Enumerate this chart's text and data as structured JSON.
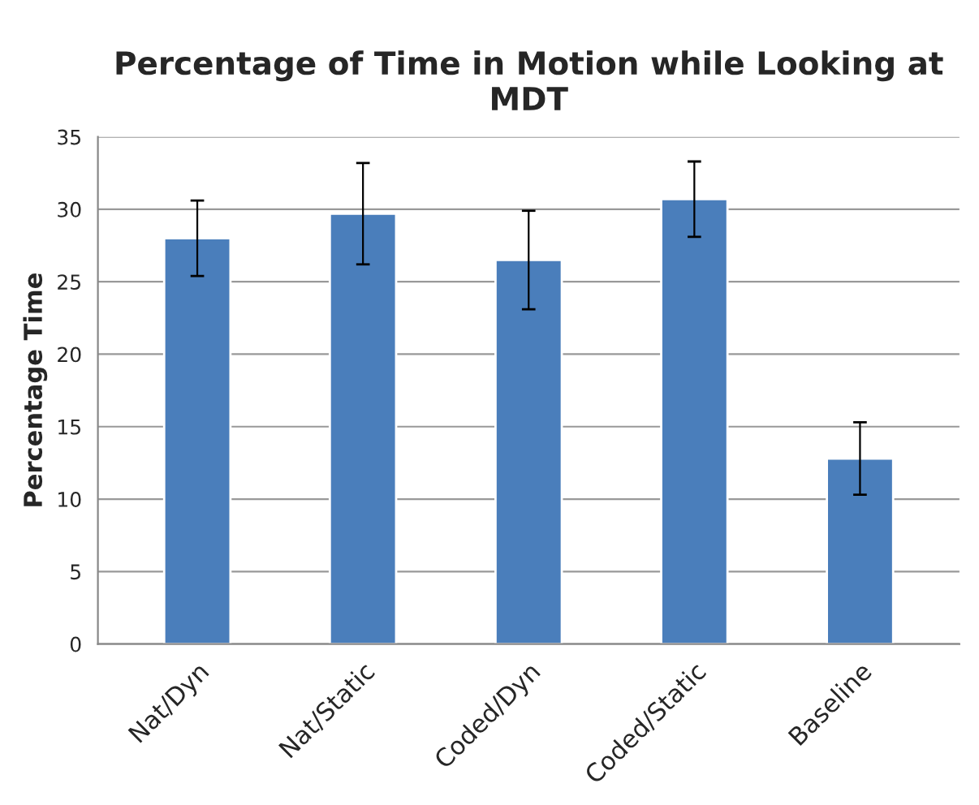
{
  "chart_data": {
    "type": "bar",
    "title": "Percentage of Time in Motion while Looking at MDT",
    "ylabel": "Percentage Time",
    "categories": [
      "Nat/Dyn",
      "Nat/Static",
      "Coded/Dyn",
      "Coded/Static",
      "Baseline"
    ],
    "values": [
      28.0,
      29.7,
      26.5,
      30.7,
      12.8
    ],
    "errors": [
      2.6,
      3.5,
      3.4,
      2.6,
      2.5
    ],
    "color": "#4a7ebb",
    "ylim": [
      0,
      35
    ],
    "yticks": [
      0,
      5,
      10,
      15,
      20,
      25,
      30,
      35
    ],
    "grid": "y"
  }
}
